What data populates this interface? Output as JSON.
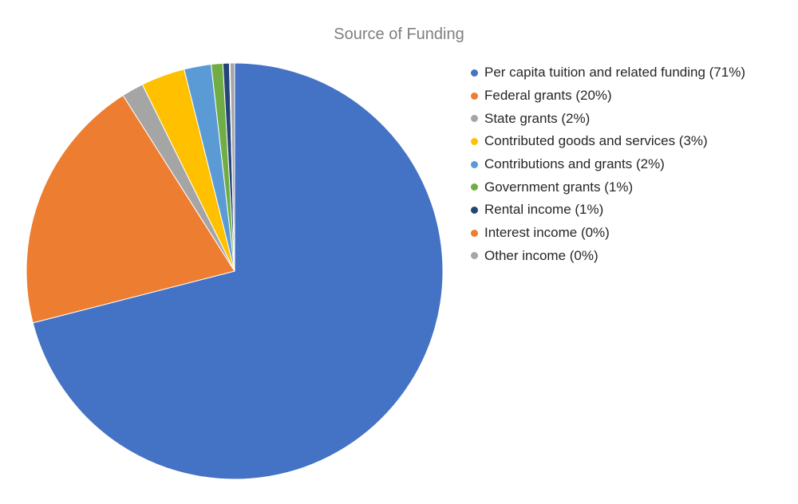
{
  "chart_data": {
    "type": "pie",
    "title": "Source of Funding",
    "slices": [
      {
        "label": "Per capita tuition and related funding (71%)",
        "value": 71,
        "color": "#4472c4"
      },
      {
        "label": "Federal grants (20%)",
        "value": 20,
        "color": "#ed7d31"
      },
      {
        "label": "State grants (2%)",
        "value": 1.7,
        "color": "#a5a5a5"
      },
      {
        "label": "Contributed goods and services (3%)",
        "value": 3.4,
        "color": "#ffc000"
      },
      {
        "label": "Contributions and grants (2%)",
        "value": 2.1,
        "color": "#5b9bd5"
      },
      {
        "label": "Government grants (1%)",
        "value": 0.9,
        "color": "#70ad47"
      },
      {
        "label": "Rental income (1%)",
        "value": 0.5,
        "color": "#264478"
      },
      {
        "label": "Interest income (0%)",
        "value": 0.05,
        "color": "#ed7d31"
      },
      {
        "label": "Other income (0%)",
        "value": 0.35,
        "color": "#a5a5a5"
      }
    ],
    "legend_position": "right"
  }
}
